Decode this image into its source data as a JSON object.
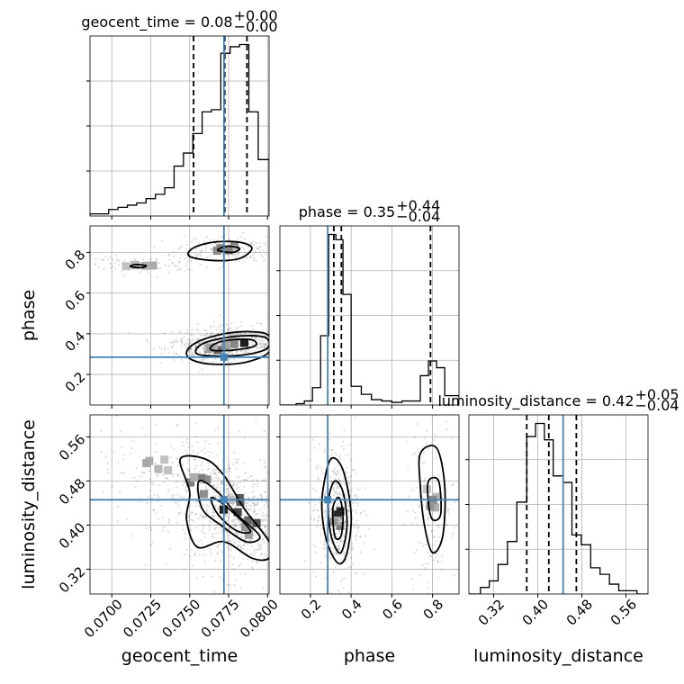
{
  "chart_data": {
    "type": "corner",
    "parameters": [
      "geocent_time",
      "phase",
      "luminosity_distance"
    ],
    "axis_labels": [
      "geocent_time",
      "phase",
      "luminosity_distance"
    ],
    "grid": true,
    "truth_color": "#4682b4",
    "ranges": {
      "geocent_time": [
        0.0686,
        0.0801
      ],
      "phase": [
        0.05,
        0.93
      ],
      "luminosity_distance": [
        0.275,
        0.6
      ]
    },
    "truths": {
      "geocent_time": 0.0772,
      "phase": 0.285,
      "luminosity_distance": 0.446
    },
    "ticks": {
      "geocent_time": [
        "0.0700",
        "0.0725",
        "0.0750",
        "0.0775",
        "0.0800"
      ],
      "phase": [
        "0.2",
        "0.4",
        "0.6",
        "0.8"
      ],
      "luminosity_distance": [
        "0.32",
        "0.40",
        "0.48",
        "0.56"
      ]
    },
    "titles": [
      {
        "param": "geocent_time",
        "label": "geocent_time = 0.08",
        "sup": "+0.00",
        "sub": "−0.00"
      },
      {
        "param": "phase",
        "label": "phase = 0.35",
        "sup": "+0.44",
        "sub": "−0.04"
      },
      {
        "param": "luminosity_distance",
        "label": "luminosity_distance = 0.42",
        "sup": "+0.05",
        "sub": "−0.04"
      }
    ],
    "quantiles": {
      "geocent_time": [
        0.07525,
        0.07725,
        0.07868
      ],
      "phase": [
        0.315,
        0.352,
        0.79
      ],
      "luminosity_distance": [
        0.38,
        0.42,
        0.47
      ]
    },
    "histograms": {
      "geocent_time": {
        "edges": [
          0.0686,
          0.0698,
          0.0704,
          0.071,
          0.0716,
          0.0722,
          0.0728,
          0.0734,
          0.074,
          0.0746,
          0.0752,
          0.0758,
          0.0764,
          0.077,
          0.0776,
          0.0782,
          0.0788,
          0.0794,
          0.0797,
          0.0801
        ],
        "counts": [
          1,
          3,
          4,
          5,
          6,
          8,
          10,
          13,
          23,
          29,
          38,
          48,
          49,
          75,
          78,
          79,
          48,
          26,
          26
        ]
      },
      "phase": {
        "edges": [
          0.05,
          0.09,
          0.13,
          0.17,
          0.21,
          0.25,
          0.29,
          0.325,
          0.36,
          0.4,
          0.45,
          0.5,
          0.55,
          0.6,
          0.65,
          0.7,
          0.74,
          0.78,
          0.82,
          0.86,
          0.93
        ],
        "counts": [
          0,
          0,
          1,
          3,
          13,
          52,
          128,
          124,
          83,
          14,
          8,
          4,
          3,
          2,
          3,
          3,
          22,
          33,
          28,
          7
        ]
      },
      "luminosity_distance": {
        "edges": [
          0.275,
          0.296,
          0.312,
          0.328,
          0.345,
          0.362,
          0.38,
          0.396,
          0.412,
          0.428,
          0.446,
          0.462,
          0.479,
          0.496,
          0.513,
          0.53,
          0.547,
          0.563,
          0.58,
          0.6
        ],
        "counts": [
          0,
          2,
          4,
          9,
          16,
          28,
          48,
          52,
          47,
          36,
          34,
          18,
          15,
          8,
          6,
          3,
          1,
          1,
          0
        ]
      }
    },
    "density_2d": [
      {
        "x": "geocent_time",
        "y": "phase",
        "blobs": [
          {
            "center": [
              0.0778,
              0.36
            ],
            "spread": [
              0.0012,
              0.025
            ],
            "weight": 1.0
          },
          {
            "center": [
              0.0764,
              0.33
            ],
            "spread": [
              0.0009,
              0.018
            ],
            "weight": 0.55
          },
          {
            "center": [
              0.0774,
              0.82
            ],
            "spread": [
              0.001,
              0.02
            ],
            "weight": 0.4
          },
          {
            "center": [
              0.0718,
              0.74
            ],
            "spread": [
              0.0014,
              0.015
            ],
            "weight": 0.25
          }
        ],
        "contours": [
          [
            [
              0.0752,
              0.27
            ],
            [
              0.0766,
              0.25
            ],
            [
              0.0786,
              0.26
            ],
            [
              0.0801,
              0.31
            ],
            [
              0.0801,
              0.39
            ],
            [
              0.079,
              0.41
            ],
            [
              0.0772,
              0.4
            ],
            [
              0.0755,
              0.36
            ],
            [
              0.0748,
              0.31
            ]
          ],
          [
            [
              0.0755,
              0.3
            ],
            [
              0.077,
              0.29
            ],
            [
              0.0788,
              0.3
            ],
            [
              0.08,
              0.33
            ],
            [
              0.0799,
              0.38
            ],
            [
              0.0784,
              0.39
            ],
            [
              0.0766,
              0.37
            ],
            [
              0.0756,
              0.34
            ]
          ],
          [
            [
              0.0764,
              0.32
            ],
            [
              0.0778,
              0.32
            ],
            [
              0.0792,
              0.34
            ],
            [
              0.079,
              0.37
            ],
            [
              0.0776,
              0.37
            ],
            [
              0.0766,
              0.35
            ]
          ],
          [
            [
              0.075,
              0.78
            ],
            [
              0.0765,
              0.76
            ],
            [
              0.0782,
              0.77
            ],
            [
              0.079,
              0.82
            ],
            [
              0.0782,
              0.85
            ],
            [
              0.0765,
              0.85
            ],
            [
              0.0752,
              0.82
            ]
          ],
          [
            [
              0.0768,
              0.81
            ],
            [
              0.0778,
              0.8
            ],
            [
              0.0782,
              0.82
            ],
            [
              0.0774,
              0.83
            ]
          ],
          [
            [
              0.0712,
              0.73
            ],
            [
              0.0719,
              0.725
            ],
            [
              0.0722,
              0.735
            ],
            [
              0.0715,
              0.74
            ]
          ]
        ]
      },
      {
        "x": "geocent_time",
        "y": "luminosity_distance",
        "blobs": [
          {
            "center": [
              0.0776,
              0.425
            ],
            "spread": [
              0.0012,
              0.035
            ],
            "weight": 1.0
          },
          {
            "center": [
              0.0789,
              0.395
            ],
            "spread": [
              0.0008,
              0.02
            ],
            "weight": 0.7
          },
          {
            "center": [
              0.0758,
              0.47
            ],
            "spread": [
              0.0012,
              0.03
            ],
            "weight": 0.45
          },
          {
            "center": [
              0.0728,
              0.51
            ],
            "spread": [
              0.0015,
              0.03
            ],
            "weight": 0.2
          }
        ],
        "contours": [
          [
            [
              0.0744,
              0.52
            ],
            [
              0.076,
              0.52
            ],
            [
              0.0772,
              0.49
            ],
            [
              0.0785,
              0.43
            ],
            [
              0.0801,
              0.37
            ],
            [
              0.0801,
              0.34
            ],
            [
              0.079,
              0.34
            ],
            [
              0.0772,
              0.37
            ],
            [
              0.0755,
              0.36
            ],
            [
              0.0748,
              0.41
            ],
            [
              0.075,
              0.46
            ]
          ],
          [
            [
              0.0756,
              0.48
            ],
            [
              0.0768,
              0.46
            ],
            [
              0.078,
              0.42
            ],
            [
              0.0795,
              0.38
            ],
            [
              0.0786,
              0.37
            ],
            [
              0.077,
              0.4
            ],
            [
              0.0758,
              0.43
            ]
          ],
          [
            [
              0.0764,
              0.45
            ],
            [
              0.0775,
              0.43
            ],
            [
              0.0789,
              0.39
            ],
            [
              0.078,
              0.39
            ],
            [
              0.0768,
              0.42
            ]
          ]
        ]
      },
      {
        "x": "phase",
        "y": "luminosity_distance",
        "blobs": [
          {
            "center": [
              0.33,
              0.42
            ],
            "spread": [
              0.035,
              0.04
            ],
            "weight": 1.0
          },
          {
            "center": [
              0.8,
              0.44
            ],
            "spread": [
              0.04,
              0.05
            ],
            "weight": 0.35
          }
        ],
        "contours": [
          [
            [
              0.26,
              0.46
            ],
            [
              0.3,
              0.52
            ],
            [
              0.36,
              0.5
            ],
            [
              0.4,
              0.42
            ],
            [
              0.38,
              0.35
            ],
            [
              0.34,
              0.33
            ],
            [
              0.29,
              0.36
            ],
            [
              0.26,
              0.41
            ]
          ],
          [
            [
              0.29,
              0.45
            ],
            [
              0.32,
              0.48
            ],
            [
              0.36,
              0.46
            ],
            [
              0.38,
              0.4
            ],
            [
              0.35,
              0.35
            ],
            [
              0.31,
              0.37
            ],
            [
              0.29,
              0.41
            ]
          ],
          [
            [
              0.31,
              0.43
            ],
            [
              0.34,
              0.45
            ],
            [
              0.36,
              0.42
            ],
            [
              0.35,
              0.38
            ],
            [
              0.32,
              0.38
            ]
          ],
          [
            [
              0.74,
              0.53
            ],
            [
              0.82,
              0.54
            ],
            [
              0.86,
              0.47
            ],
            [
              0.85,
              0.38
            ],
            [
              0.8,
              0.35
            ],
            [
              0.76,
              0.4
            ],
            [
              0.74,
              0.47
            ]
          ],
          [
            [
              0.78,
              0.48
            ],
            [
              0.83,
              0.48
            ],
            [
              0.84,
              0.42
            ],
            [
              0.8,
              0.41
            ],
            [
              0.78,
              0.44
            ]
          ]
        ]
      }
    ]
  }
}
